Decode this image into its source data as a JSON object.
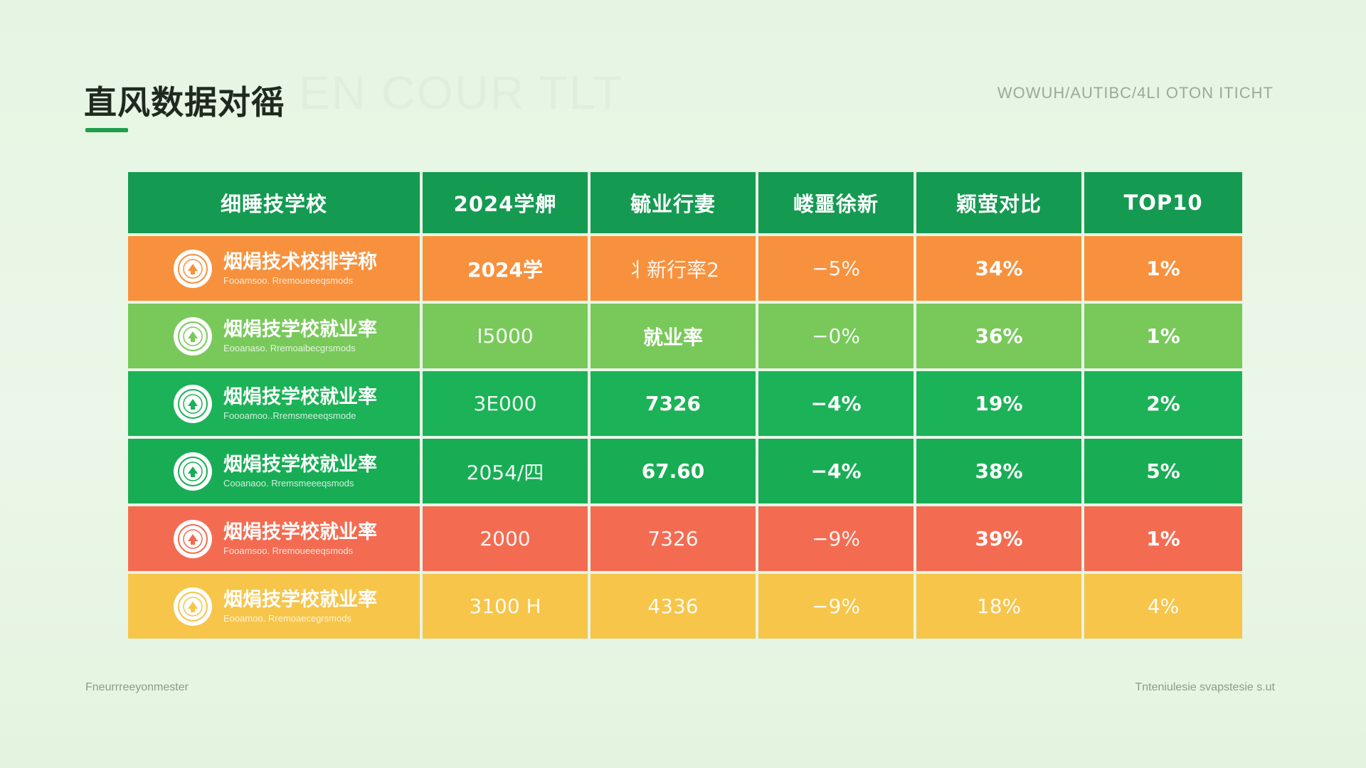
{
  "slide": {
    "title": "直风数据对徭",
    "watermark": "EN COUR TLT",
    "subtitle": "WOWUH/AUTIBC/4LI OTON ITICHT",
    "footer_left": "Fneurrreeyonmester",
    "footer_right": "Tnteniulesie svapstesie s.ut"
  },
  "colors": {
    "header": "#159a52",
    "row1": "#f7913d",
    "row2": "#78c95a",
    "row3": "#1cb257",
    "row4": "#18ad55",
    "row5": "#f36c52",
    "row6": "#f6c54a",
    "accent": "#1f9e4d"
  },
  "table": {
    "headers": [
      "细睡技学校",
      "2024学舺",
      "毓业行妻",
      "嵝噩徐新",
      "颖萤对比",
      "TOP10"
    ],
    "rows": [
      {
        "emblem": "school-emblem-icon",
        "name": "烟焆技术校排学称",
        "sub": "Fooamsoo. Rremoueeeqsmods",
        "cells": [
          "2024学",
          "丬新行率2",
          "−5%",
          "34%",
          "1%"
        ]
      },
      {
        "emblem": "school-emblem-icon",
        "name": "烟焆技学校就业率",
        "sub": "Eooanaso. Rremoaibecgrsmods",
        "cells": [
          "I5000",
          "就业率",
          "−0%",
          "36%",
          "1%"
        ]
      },
      {
        "emblem": "school-emblem-icon",
        "name": "烟焆技学校就业率",
        "sub": "Foooamoo..Rremsmeeeqsmode",
        "cells": [
          "3E000",
          "7326",
          "−4%",
          "19%",
          "2%"
        ]
      },
      {
        "emblem": "school-emblem-icon",
        "name": "烟焆技学校就业率",
        "sub": "Cooanaoo. Rremsmeeeqsmods",
        "cells": [
          "2054/四",
          "67.60",
          "−4%",
          "38%",
          "5%"
        ]
      },
      {
        "emblem": "school-emblem-icon",
        "name": "烟焆技学校就业率",
        "sub": "Fooamsoo. Rremoueeeqsmods",
        "cells": [
          "2000",
          "7326",
          "−9%",
          "39%",
          "1%"
        ]
      },
      {
        "emblem": "school-emblem-icon",
        "name": "烟焆技学校就业率",
        "sub": "Eooamoo. Rremoaecegrsmods",
        "cells": [
          "3100 H",
          "4336",
          "−9%",
          "18%",
          "4%"
        ]
      }
    ]
  }
}
